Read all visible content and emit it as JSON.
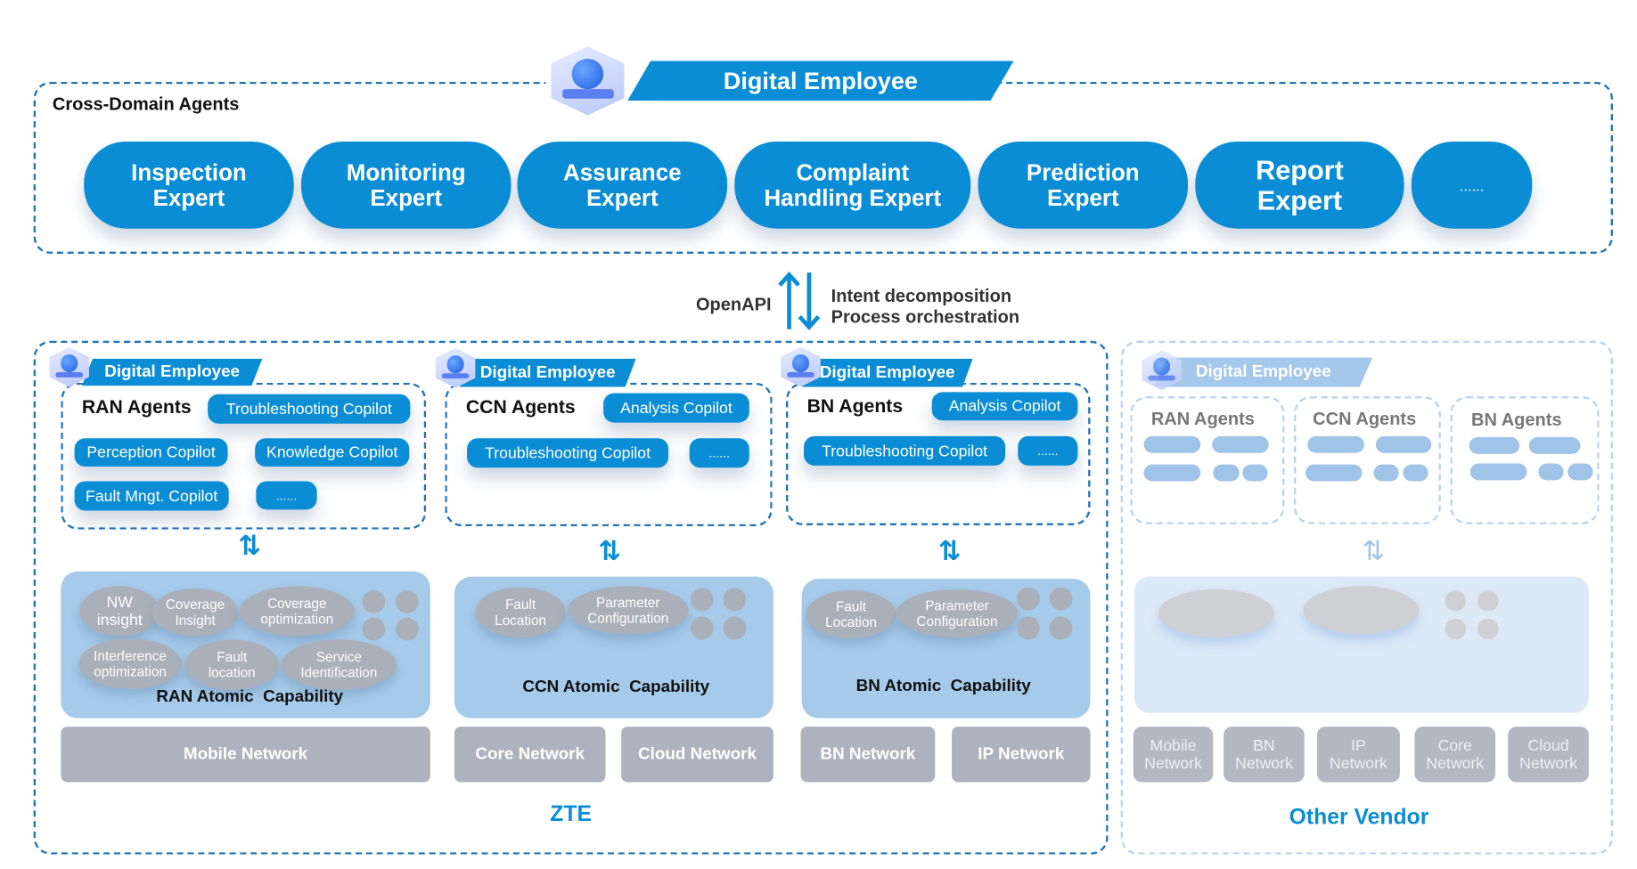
{
  "top": {
    "banner": "Digital Employee",
    "section_label": "Cross-Domain Agents",
    "experts": [
      "Inspection\nExpert",
      "Monitoring\nExpert",
      "Assurance\nExpert",
      "Complaint\nHandling Expert",
      "Prediction\nExpert",
      "Report\nExpert",
      "......"
    ]
  },
  "interface": {
    "left_label": "OpenAPI",
    "right_line1": "Intent decomposition",
    "right_line2": "Process orchestration"
  },
  "zte": {
    "label": "ZTE",
    "ran": {
      "banner": "Digital Employee",
      "title": "RAN Agents",
      "copilots": [
        "Troubleshooting Copilot",
        "Perception Copilot",
        "Knowledge Copilot",
        "Fault Mngt. Copilot",
        "......"
      ],
      "capabilities": [
        "NW\ninsight",
        "Coverage\nInsight",
        "Coverage\noptimization",
        "Interference\noptimization",
        "Fault\nlocation",
        "Service\nIdentification"
      ],
      "capability_title": "RAN Atomic  Capability",
      "networks": [
        "Mobile Network"
      ]
    },
    "ccn": {
      "banner": "Digital Employee",
      "title": "CCN Agents",
      "copilots": [
        "Analysis Copilot",
        "Troubleshooting Copilot",
        "......"
      ],
      "capabilities": [
        "Fault\nLocation",
        "Parameter\nConfiguration"
      ],
      "capability_title": "CCN Atomic  Capability",
      "networks": [
        "Core Network",
        "Cloud Network"
      ]
    },
    "bn": {
      "banner": "Digital Employee",
      "title": "BN Agents",
      "copilots": [
        "Analysis Copilot",
        "Troubleshooting Copilot",
        "......"
      ],
      "capabilities": [
        "Fault\nLocation",
        "Parameter\nConfiguration"
      ],
      "capability_title": "BN Atomic  Capability",
      "networks": [
        "BN Network",
        "IP Network"
      ]
    }
  },
  "other": {
    "label": "Other Vendor",
    "banner": "Digital Employee",
    "agents": [
      "RAN Agents",
      "CCN Agents",
      "BN Agents"
    ],
    "networks": [
      "Mobile\nNetwork",
      "BN\nNetwork",
      "IP\nNetwork",
      "Core\nNetwork",
      "Cloud\nNetwork"
    ]
  },
  "colors": {
    "accent": "#0a8dd4",
    "border": "#1f74b8",
    "panel": "#a6cbea",
    "gray": "#adb3be",
    "vendor_label": "#0a8dd4"
  },
  "icons": [
    "digital-employee-robot-icon",
    "bidirectional-arrow-icon"
  ]
}
